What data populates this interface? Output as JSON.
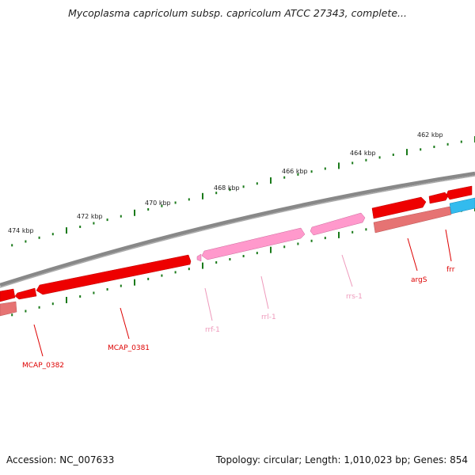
{
  "title": "Mycoplasma capricolum subsp. capricolum ATCC 27343, complete...",
  "footer": {
    "accession": "Accession: NC_007633",
    "summary": "Topology: circular; Length: 1,010,023 bp; Genes: 854"
  },
  "colors": {
    "backbone": "#808080",
    "cds": "#ee0000",
    "cds_light": "#e67373",
    "rrna": "#ff99cc",
    "rrna_dark": "#cc6699",
    "trna_blue": "#33bbee",
    "tick": "#1a7a1a",
    "label_red": "#dd0000",
    "label_pink": "#ee99bb"
  },
  "kbp_labels": [
    "462 kbp",
    "464 kbp",
    "466 kbp",
    "468 kbp",
    "470 kbp",
    "472 kbp",
    "474 kbp"
  ],
  "gene_labels": {
    "mcap_0382": "MCAP_0382",
    "mcap_0381": "MCAP_0381",
    "rrf_1": "rrf-1",
    "rrl_1": "rrl-1",
    "rrs_1": "rrs-1",
    "args": "argS",
    "frr": "frr"
  }
}
